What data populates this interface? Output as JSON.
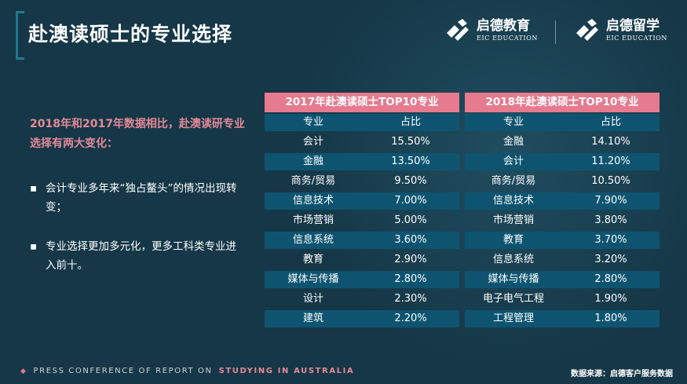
{
  "title": "赴澳读硕士的专业选择",
  "logos": {
    "left": {
      "cn": "启德教育",
      "en": "EIC EDUCATION"
    },
    "right": {
      "cn": "启德留学",
      "en": "EIC EDUCATION"
    }
  },
  "intro": "2018年和2017年数据相比，赴澳读研专业选择有两大变化：",
  "bullets": [
    "会计专业多年来“独占鳌头”的情况出现转变；",
    "专业选择更加多元化，更多工科类专业进入前十。"
  ],
  "table_2017": {
    "title": "2017年赴澳读硕士TOP10专业",
    "headers": [
      "专业",
      "占比"
    ],
    "rows": [
      [
        "会计",
        "15.50%"
      ],
      [
        "金融",
        "13.50%"
      ],
      [
        "商务/贸易",
        "9.50%"
      ],
      [
        "信息技术",
        "7.00%"
      ],
      [
        "市场营销",
        "5.00%"
      ],
      [
        "信息系统",
        "3.60%"
      ],
      [
        "教育",
        "2.90%"
      ],
      [
        "媒体与传播",
        "2.80%"
      ],
      [
        "设计",
        "2.30%"
      ],
      [
        "建筑",
        "2.20%"
      ]
    ]
  },
  "table_2018": {
    "title": "2018年赴澳读硕士TOP10专业",
    "headers": [
      "专业",
      "占比"
    ],
    "rows": [
      [
        "金融",
        "14.10%"
      ],
      [
        "会计",
        "11.20%"
      ],
      [
        "商务/贸易",
        "10.50%"
      ],
      [
        "信息技术",
        "7.90%"
      ],
      [
        "市场营销",
        "3.80%"
      ],
      [
        "教育",
        "3.70%"
      ],
      [
        "信息系统",
        "3.20%"
      ],
      [
        "媒体与传播",
        "2.80%"
      ],
      [
        "电子电气工程",
        "1.90%"
      ],
      [
        "工程管理",
        "1.80%"
      ]
    ]
  },
  "footer": {
    "left_prefix": "PRESS CONFERENCE OF REPORT ON",
    "left_highlight": "STUDYING IN AUSTRALIA",
    "right": "数据来源：启德客户服务数据"
  },
  "colors": {
    "background": "#153747",
    "accent_pink": "#e67a8e",
    "row_dark": "#0e5470"
  }
}
